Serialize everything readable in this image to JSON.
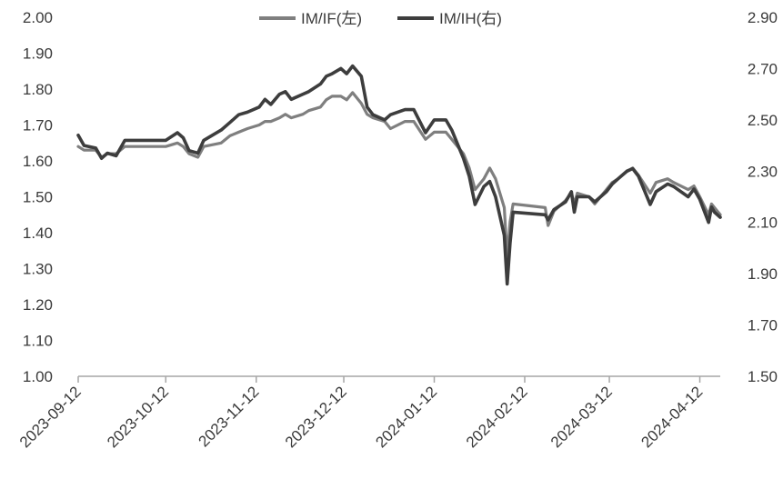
{
  "chart_data": {
    "type": "line",
    "title": "",
    "xlabel": "",
    "ylabel_left": "",
    "ylabel_right": "",
    "x_ticks": [
      "2023-09-12",
      "2023-10-12",
      "2023-11-12",
      "2023-12-12",
      "2024-01-12",
      "2024-02-12",
      "2024-03-12",
      "2024-04-12"
    ],
    "x_range": [
      "2023-09-12",
      "2024-04-19"
    ],
    "y_left": {
      "ticks": [
        "1.00",
        "1.10",
        "1.20",
        "1.30",
        "1.40",
        "1.50",
        "1.60",
        "1.70",
        "1.80",
        "1.90",
        "2.00"
      ],
      "range": [
        1.0,
        2.0
      ]
    },
    "y_right": {
      "ticks": [
        "1.50",
        "1.70",
        "1.90",
        "2.10",
        "2.30",
        "2.50",
        "2.70",
        "2.90"
      ],
      "range": [
        1.5,
        2.9
      ]
    },
    "legend_position": "top-center",
    "grid": false,
    "series": [
      {
        "name": "IM/IF(左)",
        "axis": "left",
        "color": "#7f7f7f",
        "points": [
          [
            "2023-09-12",
            1.64
          ],
          [
            "2023-09-14",
            1.63
          ],
          [
            "2023-09-18",
            1.63
          ],
          [
            "2023-09-20",
            1.61
          ],
          [
            "2023-09-22",
            1.62
          ],
          [
            "2023-09-25",
            1.62
          ],
          [
            "2023-09-28",
            1.64
          ],
          [
            "2023-10-12",
            1.64
          ],
          [
            "2023-10-16",
            1.65
          ],
          [
            "2023-10-18",
            1.64
          ],
          [
            "2023-10-20",
            1.62
          ],
          [
            "2023-10-23",
            1.61
          ],
          [
            "2023-10-25",
            1.64
          ],
          [
            "2023-10-31",
            1.65
          ],
          [
            "2023-11-03",
            1.67
          ],
          [
            "2023-11-06",
            1.68
          ],
          [
            "2023-11-09",
            1.69
          ],
          [
            "2023-11-13",
            1.7
          ],
          [
            "2023-11-15",
            1.71
          ],
          [
            "2023-11-17",
            1.71
          ],
          [
            "2023-11-20",
            1.72
          ],
          [
            "2023-11-22",
            1.73
          ],
          [
            "2023-11-24",
            1.72
          ],
          [
            "2023-11-28",
            1.73
          ],
          [
            "2023-11-30",
            1.74
          ],
          [
            "2023-12-04",
            1.75
          ],
          [
            "2023-12-06",
            1.77
          ],
          [
            "2023-12-08",
            1.78
          ],
          [
            "2023-12-11",
            1.78
          ],
          [
            "2023-12-13",
            1.77
          ],
          [
            "2023-12-15",
            1.79
          ],
          [
            "2023-12-18",
            1.76
          ],
          [
            "2023-12-20",
            1.73
          ],
          [
            "2023-12-22",
            1.72
          ],
          [
            "2023-12-26",
            1.71
          ],
          [
            "2023-12-28",
            1.69
          ],
          [
            "2024-01-02",
            1.71
          ],
          [
            "2024-01-05",
            1.71
          ],
          [
            "2024-01-09",
            1.66
          ],
          [
            "2024-01-12",
            1.68
          ],
          [
            "2024-01-16",
            1.68
          ],
          [
            "2024-01-18",
            1.66
          ],
          [
            "2024-01-22",
            1.62
          ],
          [
            "2024-01-24",
            1.58
          ],
          [
            "2024-01-26",
            1.52
          ],
          [
            "2024-01-29",
            1.55
          ],
          [
            "2024-01-31",
            1.58
          ],
          [
            "2024-02-02",
            1.55
          ],
          [
            "2024-02-05",
            1.47
          ],
          [
            "2024-02-06",
            1.33
          ],
          [
            "2024-02-07",
            1.43
          ],
          [
            "2024-02-08",
            1.48
          ],
          [
            "2024-02-19",
            1.47
          ],
          [
            "2024-02-20",
            1.42
          ],
          [
            "2024-02-22",
            1.46
          ],
          [
            "2024-02-26",
            1.49
          ],
          [
            "2024-02-28",
            1.51
          ],
          [
            "2024-02-29",
            1.48
          ],
          [
            "2024-03-01",
            1.51
          ],
          [
            "2024-03-05",
            1.5
          ],
          [
            "2024-03-07",
            1.48
          ],
          [
            "2024-03-11",
            1.52
          ],
          [
            "2024-03-13",
            1.54
          ],
          [
            "2024-03-15",
            1.55
          ],
          [
            "2024-03-18",
            1.57
          ],
          [
            "2024-03-20",
            1.58
          ],
          [
            "2024-03-22",
            1.56
          ],
          [
            "2024-03-26",
            1.51
          ],
          [
            "2024-03-28",
            1.54
          ],
          [
            "2024-04-01",
            1.55
          ],
          [
            "2024-04-03",
            1.54
          ],
          [
            "2024-04-08",
            1.52
          ],
          [
            "2024-04-10",
            1.53
          ],
          [
            "2024-04-12",
            1.5
          ],
          [
            "2024-04-15",
            1.45
          ],
          [
            "2024-04-16",
            1.48
          ],
          [
            "2024-04-17",
            1.47
          ],
          [
            "2024-04-19",
            1.45
          ]
        ]
      },
      {
        "name": "IM/IH(右)",
        "axis": "right",
        "color": "#3d3d3d",
        "points": [
          [
            "2023-09-12",
            2.44
          ],
          [
            "2023-09-14",
            2.4
          ],
          [
            "2023-09-18",
            2.39
          ],
          [
            "2023-09-20",
            2.35
          ],
          [
            "2023-09-22",
            2.37
          ],
          [
            "2023-09-25",
            2.36
          ],
          [
            "2023-09-28",
            2.42
          ],
          [
            "2023-10-12",
            2.42
          ],
          [
            "2023-10-16",
            2.45
          ],
          [
            "2023-10-18",
            2.43
          ],
          [
            "2023-10-20",
            2.38
          ],
          [
            "2023-10-23",
            2.37
          ],
          [
            "2023-10-25",
            2.42
          ],
          [
            "2023-10-31",
            2.46
          ],
          [
            "2023-11-03",
            2.49
          ],
          [
            "2023-11-06",
            2.52
          ],
          [
            "2023-11-09",
            2.53
          ],
          [
            "2023-11-13",
            2.55
          ],
          [
            "2023-11-15",
            2.58
          ],
          [
            "2023-11-17",
            2.56
          ],
          [
            "2023-11-20",
            2.6
          ],
          [
            "2023-11-22",
            2.61
          ],
          [
            "2023-11-24",
            2.58
          ],
          [
            "2023-11-28",
            2.6
          ],
          [
            "2023-11-30",
            2.61
          ],
          [
            "2023-12-04",
            2.64
          ],
          [
            "2023-12-06",
            2.67
          ],
          [
            "2023-12-08",
            2.68
          ],
          [
            "2023-12-11",
            2.7
          ],
          [
            "2023-12-13",
            2.68
          ],
          [
            "2023-12-15",
            2.71
          ],
          [
            "2023-12-18",
            2.67
          ],
          [
            "2023-12-20",
            2.55
          ],
          [
            "2023-12-22",
            2.52
          ],
          [
            "2023-12-26",
            2.5
          ],
          [
            "2023-12-28",
            2.52
          ],
          [
            "2024-01-02",
            2.54
          ],
          [
            "2024-01-05",
            2.54
          ],
          [
            "2024-01-09",
            2.45
          ],
          [
            "2024-01-12",
            2.5
          ],
          [
            "2024-01-16",
            2.5
          ],
          [
            "2024-01-18",
            2.46
          ],
          [
            "2024-01-22",
            2.35
          ],
          [
            "2024-01-24",
            2.28
          ],
          [
            "2024-01-26",
            2.17
          ],
          [
            "2024-01-29",
            2.24
          ],
          [
            "2024-01-31",
            2.26
          ],
          [
            "2024-02-02",
            2.2
          ],
          [
            "2024-02-05",
            2.05
          ],
          [
            "2024-02-06",
            1.86
          ],
          [
            "2024-02-07",
            2.02
          ],
          [
            "2024-02-08",
            2.14
          ],
          [
            "2024-02-19",
            2.13
          ],
          [
            "2024-02-20",
            2.11
          ],
          [
            "2024-02-22",
            2.15
          ],
          [
            "2024-02-26",
            2.18
          ],
          [
            "2024-02-28",
            2.22
          ],
          [
            "2024-02-29",
            2.14
          ],
          [
            "2024-03-01",
            2.2
          ],
          [
            "2024-03-05",
            2.2
          ],
          [
            "2024-03-07",
            2.18
          ],
          [
            "2024-03-11",
            2.22
          ],
          [
            "2024-03-13",
            2.25
          ],
          [
            "2024-03-15",
            2.27
          ],
          [
            "2024-03-18",
            2.3
          ],
          [
            "2024-03-20",
            2.31
          ],
          [
            "2024-03-22",
            2.28
          ],
          [
            "2024-03-26",
            2.17
          ],
          [
            "2024-03-28",
            2.22
          ],
          [
            "2024-04-01",
            2.25
          ],
          [
            "2024-04-03",
            2.24
          ],
          [
            "2024-04-08",
            2.2
          ],
          [
            "2024-04-10",
            2.23
          ],
          [
            "2024-04-12",
            2.19
          ],
          [
            "2024-04-15",
            2.1
          ],
          [
            "2024-04-16",
            2.16
          ],
          [
            "2024-04-17",
            2.14
          ],
          [
            "2024-04-19",
            2.12
          ]
        ]
      }
    ]
  }
}
